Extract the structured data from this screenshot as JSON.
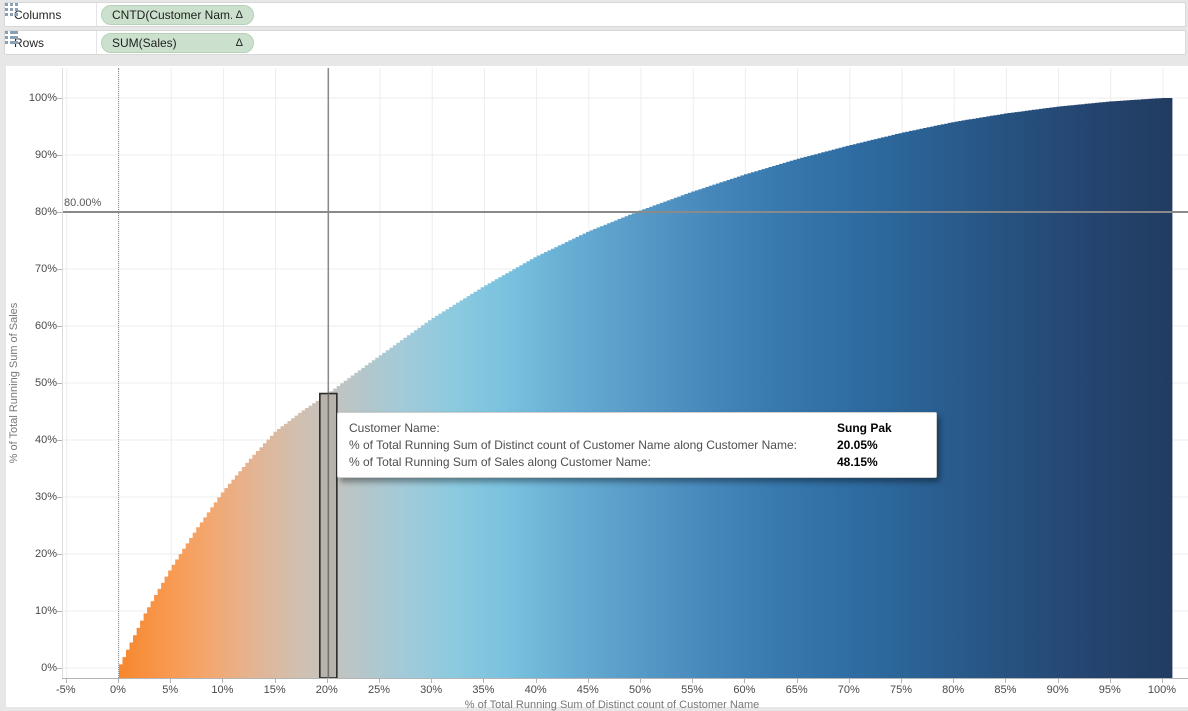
{
  "shelves": {
    "columns": {
      "label": "Columns",
      "pill": "CNTD(Customer Nam..",
      "pill_suffix": "Δ"
    },
    "rows": {
      "label": "Rows",
      "pill": "SUM(Sales)",
      "pill_suffix": "Δ"
    }
  },
  "tooltip": {
    "rows": [
      {
        "label": "Customer Name:",
        "value": "Sung Pak"
      },
      {
        "label": "% of Total Running Sum of Distinct count of Customer Name along Customer Name:",
        "value": "20.05%"
      },
      {
        "label": "% of Total Running Sum of Sales along Customer Name:",
        "value": "48.15%"
      }
    ]
  },
  "colors": {
    "pill_green": "#cbe1cd",
    "reference_line": "#8a8a8a",
    "selected_bar_fill": "#b7b2aa",
    "selected_bar_stroke": "#2b2b2b",
    "gridline": "#ededed",
    "icon_gray_blue": "#8aa0b4"
  },
  "chart_data": {
    "type": "bar",
    "title": "Pareto chart: cumulative % of sales vs cumulative % of customers",
    "xlabel": "% of Total Running Sum of Distinct count of Customer Name",
    "ylabel": "% of Total Running Sum of Sales",
    "x_ticks": [
      -5,
      0,
      5,
      10,
      15,
      20,
      25,
      30,
      35,
      40,
      45,
      50,
      55,
      60,
      65,
      70,
      75,
      80,
      85,
      90,
      95,
      100
    ],
    "y_ticks": [
      0,
      10,
      20,
      30,
      40,
      50,
      60,
      70,
      80,
      90,
      100
    ],
    "xlim": [
      -5.4,
      102.5
    ],
    "ylim": [
      -1.8,
      105.3
    ],
    "x_tick_suffix": "%",
    "grid": true,
    "legend": "none",
    "x_max_bar": 100.9,
    "curve_samples": {
      "x": [
        0,
        2.5,
        5,
        7.5,
        10,
        12.5,
        15,
        17.5,
        20.05,
        22.5,
        25,
        30,
        35,
        40,
        45,
        50,
        55,
        60,
        65,
        70,
        75,
        80,
        85,
        90,
        95,
        100,
        100.9
      ],
      "y": [
        0,
        9.5,
        17.5,
        24.5,
        31.0,
        36.5,
        41.5,
        45.0,
        48.15,
        51.5,
        54.8,
        61.3,
        67.0,
        72.2,
        76.6,
        80.3,
        83.6,
        86.6,
        89.3,
        91.7,
        93.9,
        95.8,
        97.3,
        98.5,
        99.4,
        100,
        100
      ]
    },
    "reference_lines": {
      "horizontal": {
        "value": 80,
        "label": "80.00%"
      },
      "vertical": {
        "value": 20.05
      }
    },
    "selected_point": {
      "customer": "Sung Pak",
      "x_pct": 20.05,
      "y_pct": 48.15
    },
    "gradient_stops": [
      {
        "pos": 0,
        "color": "#F6872E"
      },
      {
        "pos": 5,
        "color": "#F89A52"
      },
      {
        "pos": 9,
        "color": "#F2A872"
      },
      {
        "pos": 13,
        "color": "#E3B494"
      },
      {
        "pos": 17,
        "color": "#D2BFAF"
      },
      {
        "pos": 20,
        "color": "#C6C3BD"
      },
      {
        "pos": 23,
        "color": "#B6C6C9"
      },
      {
        "pos": 27,
        "color": "#A3CAD8"
      },
      {
        "pos": 32,
        "color": "#8CCADF"
      },
      {
        "pos": 37,
        "color": "#7AC2DF"
      },
      {
        "pos": 43,
        "color": "#67AED4"
      },
      {
        "pos": 49,
        "color": "#599CC8"
      },
      {
        "pos": 56,
        "color": "#4889BC"
      },
      {
        "pos": 63,
        "color": "#3879AE"
      },
      {
        "pos": 70,
        "color": "#2F6DA2"
      },
      {
        "pos": 78,
        "color": "#2A5F91"
      },
      {
        "pos": 85,
        "color": "#275280"
      },
      {
        "pos": 92,
        "color": "#254672"
      },
      {
        "pos": 100.9,
        "color": "#213C60"
      }
    ]
  }
}
